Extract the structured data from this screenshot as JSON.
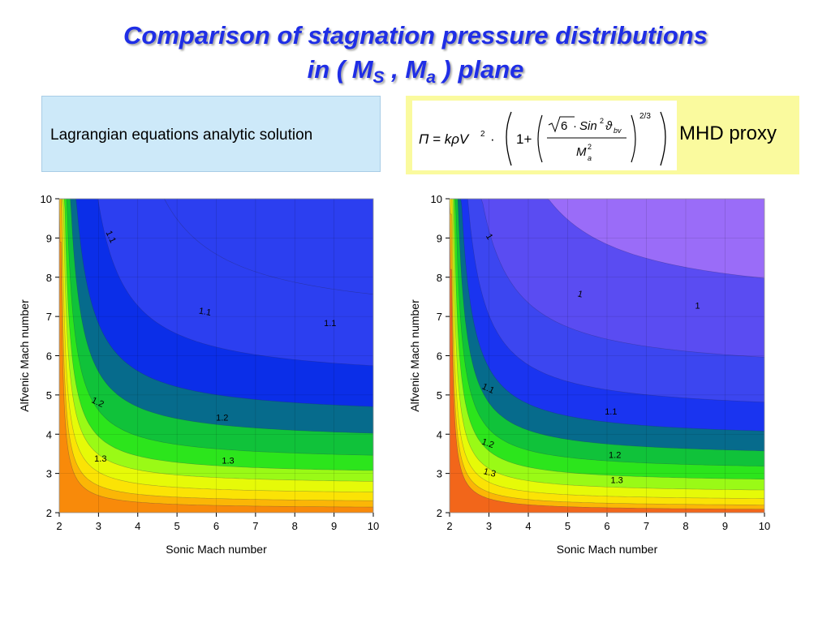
{
  "title": {
    "line1": "Comparison of stagnation pressure distributions",
    "line2_prefix": "in ( M",
    "line2_sub1": "S",
    "line2_mid": " , M",
    "line2_sub2": "a",
    "line2_suffix": " ) plane"
  },
  "left_box": {
    "text": "Lagrangian equations analytic solution",
    "color": "#cde9f9"
  },
  "right_box": {
    "label": "MHD proxy",
    "color": "#fafa9e",
    "formula": {
      "lhs": "Π = kρV",
      "lhs_exp": "2",
      "dot": "·",
      "one": "1+",
      "sqrt_arg": "6",
      "sin": "Sin",
      "sin_exp": "2",
      "theta": "ϑ",
      "theta_sub": "bv",
      "denominator": "M",
      "den_exp": "2",
      "den_sub": "a",
      "outer_exp": "2/3"
    }
  },
  "chart_data": [
    {
      "type": "contour",
      "name": "Lagrangian equations analytic solution",
      "xlabel": "Sonic Mach number",
      "ylabel": "Alfvenic Mach number",
      "xlim": [
        2,
        10
      ],
      "ylim": [
        2,
        10
      ],
      "xticks": [
        "2",
        "3",
        "4",
        "5",
        "6",
        "7",
        "8",
        "9",
        "10"
      ],
      "yticks": [
        "2",
        "3",
        "4",
        "5",
        "6",
        "7",
        "8",
        "9",
        "10"
      ],
      "bands": [
        {
          "asymptote": 5.3,
          "x0": 2.25,
          "fill": "#0b2ee8"
        },
        {
          "asymptote": 4.4,
          "x0": 2.0,
          "fill": "#066b8c"
        },
        {
          "asymptote": 3.8,
          "x0": 2.0,
          "fill": "#10c23a"
        },
        {
          "asymptote": 3.3,
          "x0": 2.0,
          "fill": "#2ce51c"
        },
        {
          "asymptote": 2.95,
          "x0": 2.0,
          "fill": "#9afa16"
        },
        {
          "asymptote": 2.7,
          "x0": 2.0,
          "fill": "#e6fa08"
        },
        {
          "asymptote": 2.45,
          "x0": 2.0,
          "fill": "#fbe305"
        },
        {
          "asymptote": 2.25,
          "x0": 2.0,
          "fill": "#fbb606"
        },
        {
          "asymptote": 2.1,
          "x0": 2.0,
          "fill": "#f88a0a"
        }
      ],
      "base_fill": "#2c3ff0",
      "extra_boundary": {
        "asymptote": 6.8,
        "x0": 3.0
      },
      "labels": [
        {
          "text": "1.1",
          "x": 3.25,
          "y": 9.0,
          "rot": 65
        },
        {
          "text": "1.1",
          "x": 5.7,
          "y": 7.05,
          "rot": 10
        },
        {
          "text": "1.1",
          "x": 8.9,
          "y": 6.75,
          "rot": 0
        },
        {
          "text": "1.2",
          "x": 2.95,
          "y": 4.75,
          "rot": 25
        },
        {
          "text": "1.2",
          "x": 6.15,
          "y": 4.35,
          "rot": 0
        },
        {
          "text": "1.3",
          "x": 3.05,
          "y": 3.3,
          "rot": 0
        },
        {
          "text": "1.3",
          "x": 6.3,
          "y": 3.25,
          "rot": 0
        }
      ]
    },
    {
      "type": "contour",
      "name": "MHD proxy",
      "xlabel": "Sonic Mach number",
      "ylabel": "Alfvenic Mach number",
      "xlim": [
        2,
        10
      ],
      "ylim": [
        2,
        10
      ],
      "xticks": [
        "2",
        "3",
        "4",
        "5",
        "6",
        "7",
        "8",
        "9",
        "10"
      ],
      "yticks": [
        "2",
        "3",
        "4",
        "5",
        "6",
        "7",
        "8",
        "9",
        "10"
      ],
      "bands": [
        {
          "asymptote": 7.2,
          "x0": 2.4,
          "fill": "#5a4cf2"
        },
        {
          "asymptote": 5.5,
          "x0": 2.0,
          "fill": "#3c46f0"
        },
        {
          "asymptote": 4.5,
          "x0": 2.0,
          "fill": "#1a34f0"
        },
        {
          "asymptote": 3.85,
          "x0": 2.0,
          "fill": "#066b8c"
        },
        {
          "asymptote": 3.4,
          "x0": 2.0,
          "fill": "#10c23a"
        },
        {
          "asymptote": 3.05,
          "x0": 2.0,
          "fill": "#2ce51c"
        },
        {
          "asymptote": 2.75,
          "x0": 2.0,
          "fill": "#9afa16"
        },
        {
          "asymptote": 2.5,
          "x0": 2.0,
          "fill": "#e6fa08"
        },
        {
          "asymptote": 2.3,
          "x0": 2.0,
          "fill": "#fbe305"
        },
        {
          "asymptote": 2.15,
          "x0": 2.0,
          "fill": "#fbb606"
        },
        {
          "asymptote": 2.05,
          "x0": 2.0,
          "fill": "#f2661a"
        }
      ],
      "base_fill": "#9a6cf8",
      "extra_boundary": null,
      "labels": [
        {
          "text": "1",
          "x": 2.95,
          "y": 9.0,
          "rot": 60
        },
        {
          "text": "1",
          "x": 5.3,
          "y": 7.5,
          "rot": 15
        },
        {
          "text": "1",
          "x": 8.3,
          "y": 7.2,
          "rot": 0
        },
        {
          "text": "1.1",
          "x": 2.95,
          "y": 5.1,
          "rot": 25
        },
        {
          "text": "1.1",
          "x": 6.1,
          "y": 4.5,
          "rot": 0
        },
        {
          "text": "1.2",
          "x": 2.95,
          "y": 3.7,
          "rot": 20
        },
        {
          "text": "1.2",
          "x": 6.2,
          "y": 3.4,
          "rot": 0
        },
        {
          "text": "1.3",
          "x": 3.0,
          "y": 2.95,
          "rot": 15
        },
        {
          "text": "1.3",
          "x": 6.25,
          "y": 2.75,
          "rot": 0
        }
      ]
    }
  ]
}
